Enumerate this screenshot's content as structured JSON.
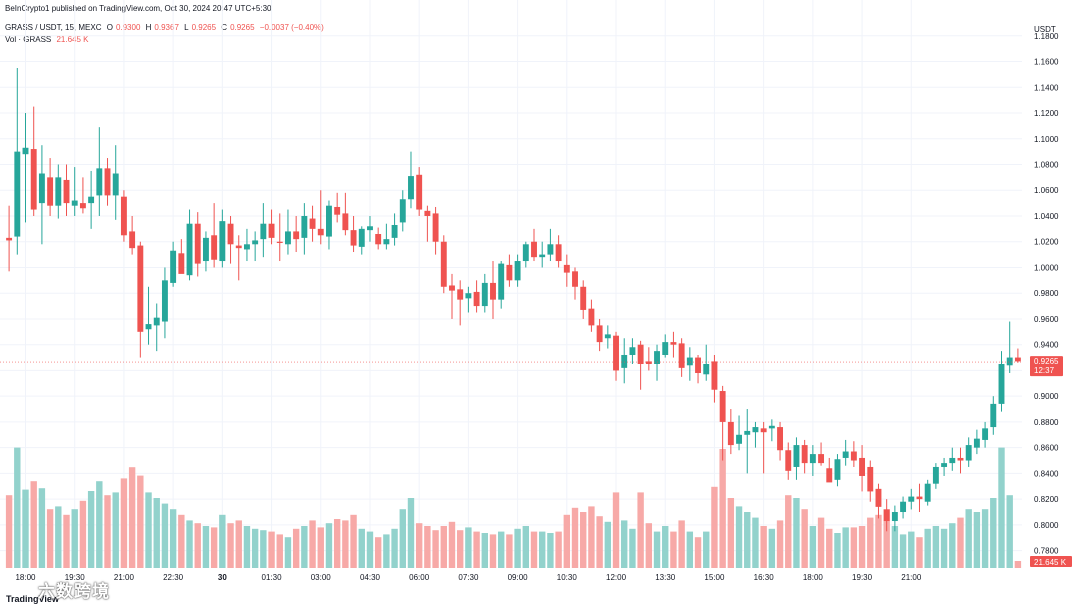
{
  "header": {
    "published": "BeInCrypto1 published on TradingView.com, Oct 30, 2024 20:47 UTC+5:30",
    "symbol": "GRASS / USDT, 15, MEXC",
    "o_label": "O",
    "o_value": "0.9300",
    "h_label": "H",
    "h_value": "0.9367",
    "l_label": "L",
    "l_value": "0.9265",
    "c_label": "C",
    "c_value": "0.9265",
    "change": "−0.0037 (−0.40%)",
    "vol_label": "Vol · GRASS",
    "vol_value": "21.645 K"
  },
  "currency_label": "USDT",
  "price_label": "0.9265",
  "countdown_label": "12:37",
  "volume_label": "21.645 K",
  "logo_text": "TradingView",
  "watermark_text": "六数跨境",
  "colors": {
    "up": "#26a69a",
    "down": "#ef5350",
    "vol_up": "#92d2cc",
    "vol_down": "#f7a9a7",
    "grid": "#f0f3fa"
  },
  "chart_data": {
    "type": "candlestick",
    "y_ticks": [
      "1.1800",
      "1.1600",
      "1.1400",
      "1.1200",
      "1.1000",
      "1.0800",
      "1.0600",
      "1.0400",
      "1.0200",
      "1.0000",
      "0.9800",
      "0.9600",
      "0.9400",
      "0.9200",
      "0.9000",
      "0.8800",
      "0.8600",
      "0.8400",
      "0.8200",
      "0.8000",
      "0.7800"
    ],
    "x_ticks": [
      "18:00",
      "19:30",
      "21:00",
      "22:30",
      "30",
      "01:30",
      "03:00",
      "04:30",
      "06:00",
      "07:30",
      "09:00",
      "10:30",
      "12:00",
      "13:30",
      "15:00",
      "16:30",
      "18:00",
      "19:30",
      "21:00"
    ],
    "x_tick_positions": [
      2,
      8,
      14,
      20,
      26,
      32,
      38,
      44,
      50,
      56,
      62,
      68,
      74,
      80,
      86,
      92,
      98,
      104,
      110
    ],
    "ylim": [
      0.7665,
      1.1845
    ],
    "bars": [
      {
        "o": 1.023,
        "h": 1.048,
        "l": 0.997,
        "c": 1.021,
        "v": 0.52
      },
      {
        "o": 1.024,
        "h": 1.155,
        "l": 1.01,
        "c": 1.09,
        "v": 0.86
      },
      {
        "o": 1.088,
        "h": 1.12,
        "l": 1.035,
        "c": 1.093,
        "v": 0.56
      },
      {
        "o": 1.092,
        "h": 1.125,
        "l": 1.04,
        "c": 1.045,
        "v": 0.62
      },
      {
        "o": 1.05,
        "h": 1.095,
        "l": 1.018,
        "c": 1.073,
        "v": 0.57
      },
      {
        "o": 1.07,
        "h": 1.085,
        "l": 1.04,
        "c": 1.048,
        "v": 0.42
      },
      {
        "o": 1.048,
        "h": 1.08,
        "l": 1.038,
        "c": 1.07,
        "v": 0.44
      },
      {
        "o": 1.068,
        "h": 1.08,
        "l": 1.04,
        "c": 1.05,
        "v": 0.38
      },
      {
        "o": 1.048,
        "h": 1.078,
        "l": 1.04,
        "c": 1.052,
        "v": 0.42
      },
      {
        "o": 1.05,
        "h": 1.07,
        "l": 1.042,
        "c": 1.046,
        "v": 0.48
      },
      {
        "o": 1.05,
        "h": 1.075,
        "l": 1.03,
        "c": 1.055,
        "v": 0.55
      },
      {
        "o": 1.056,
        "h": 1.109,
        "l": 1.04,
        "c": 1.077,
        "v": 0.62
      },
      {
        "o": 1.077,
        "h": 1.085,
        "l": 1.048,
        "c": 1.056,
        "v": 0.52
      },
      {
        "o": 1.056,
        "h": 1.095,
        "l": 1.037,
        "c": 1.073,
        "v": 0.54
      },
      {
        "o": 1.055,
        "h": 1.06,
        "l": 1.02,
        "c": 1.025,
        "v": 0.64
      },
      {
        "o": 1.028,
        "h": 1.04,
        "l": 1.01,
        "c": 1.015,
        "v": 0.72
      },
      {
        "o": 1.017,
        "h": 1.02,
        "l": 0.93,
        "c": 0.95,
        "v": 0.66
      },
      {
        "o": 0.952,
        "h": 0.985,
        "l": 0.94,
        "c": 0.956,
        "v": 0.54
      },
      {
        "o": 0.955,
        "h": 0.972,
        "l": 0.935,
        "c": 0.961,
        "v": 0.5
      },
      {
        "o": 0.958,
        "h": 1.0,
        "l": 0.945,
        "c": 0.99,
        "v": 0.46
      },
      {
        "o": 0.988,
        "h": 1.02,
        "l": 0.985,
        "c": 1.013,
        "v": 0.42
      },
      {
        "o": 1.011,
        "h": 1.022,
        "l": 0.997,
        "c": 0.995,
        "v": 0.38
      },
      {
        "o": 0.994,
        "h": 1.045,
        "l": 0.99,
        "c": 1.034,
        "v": 0.34
      },
      {
        "o": 1.034,
        "h": 1.043,
        "l": 0.993,
        "c": 1.003,
        "v": 0.32
      },
      {
        "o": 1.005,
        "h": 1.028,
        "l": 0.997,
        "c": 1.023,
        "v": 0.3
      },
      {
        "o": 1.025,
        "h": 1.05,
        "l": 1.0,
        "c": 1.006,
        "v": 0.29
      },
      {
        "o": 1.005,
        "h": 1.045,
        "l": 1.0,
        "c": 1.036,
        "v": 0.38
      },
      {
        "o": 1.034,
        "h": 1.04,
        "l": 1.003,
        "c": 1.018,
        "v": 0.32
      },
      {
        "o": 1.017,
        "h": 1.025,
        "l": 0.99,
        "c": 1.015,
        "v": 0.34
      },
      {
        "o": 1.014,
        "h": 1.03,
        "l": 1.005,
        "c": 1.018,
        "v": 0.3
      },
      {
        "o": 1.018,
        "h": 1.028,
        "l": 1.005,
        "c": 1.021,
        "v": 0.28
      },
      {
        "o": 1.022,
        "h": 1.05,
        "l": 1.008,
        "c": 1.034,
        "v": 0.27
      },
      {
        "o": 1.034,
        "h": 1.045,
        "l": 1.018,
        "c": 1.023,
        "v": 0.26
      },
      {
        "o": 1.02,
        "h": 1.042,
        "l": 1.005,
        "c": 1.019,
        "v": 0.24
      },
      {
        "o": 1.018,
        "h": 1.045,
        "l": 1.01,
        "c": 1.028,
        "v": 0.22
      },
      {
        "o": 1.028,
        "h": 1.04,
        "l": 1.012,
        "c": 1.022,
        "v": 0.28
      },
      {
        "o": 1.023,
        "h": 1.05,
        "l": 1.01,
        "c": 1.04,
        "v": 0.3
      },
      {
        "o": 1.038,
        "h": 1.048,
        "l": 1.02,
        "c": 1.03,
        "v": 0.34
      },
      {
        "o": 1.03,
        "h": 1.06,
        "l": 1.018,
        "c": 1.025,
        "v": 0.29
      },
      {
        "o": 1.024,
        "h": 1.052,
        "l": 1.014,
        "c": 1.048,
        "v": 0.32
      },
      {
        "o": 1.047,
        "h": 1.058,
        "l": 1.035,
        "c": 1.041,
        "v": 0.35
      },
      {
        "o": 1.042,
        "h": 1.058,
        "l": 1.025,
        "c": 1.029,
        "v": 0.34
      },
      {
        "o": 1.029,
        "h": 1.04,
        "l": 1.012,
        "c": 1.017,
        "v": 0.38
      },
      {
        "o": 1.016,
        "h": 1.032,
        "l": 1.01,
        "c": 1.03,
        "v": 0.28
      },
      {
        "o": 1.029,
        "h": 1.04,
        "l": 1.02,
        "c": 1.032,
        "v": 0.26
      },
      {
        "o": 1.026,
        "h": 1.031,
        "l": 1.014,
        "c": 1.018,
        "v": 0.22
      },
      {
        "o": 1.018,
        "h": 1.034,
        "l": 1.014,
        "c": 1.022,
        "v": 0.24
      },
      {
        "o": 1.023,
        "h": 1.042,
        "l": 1.017,
        "c": 1.033,
        "v": 0.28
      },
      {
        "o": 1.035,
        "h": 1.06,
        "l": 1.028,
        "c": 1.053,
        "v": 0.42
      },
      {
        "o": 1.053,
        "h": 1.09,
        "l": 1.046,
        "c": 1.071,
        "v": 0.5
      },
      {
        "o": 1.072,
        "h": 1.078,
        "l": 1.04,
        "c": 1.045,
        "v": 0.32
      },
      {
        "o": 1.044,
        "h": 1.048,
        "l": 1.02,
        "c": 1.04,
        "v": 0.3
      },
      {
        "o": 1.042,
        "h": 1.047,
        "l": 1.01,
        "c": 1.02,
        "v": 0.27
      },
      {
        "o": 1.02,
        "h": 1.025,
        "l": 0.98,
        "c": 0.985,
        "v": 0.3
      },
      {
        "o": 0.986,
        "h": 0.995,
        "l": 0.96,
        "c": 0.982,
        "v": 0.33
      },
      {
        "o": 0.983,
        "h": 0.99,
        "l": 0.955,
        "c": 0.975,
        "v": 0.27
      },
      {
        "o": 0.976,
        "h": 0.985,
        "l": 0.965,
        "c": 0.98,
        "v": 0.29
      },
      {
        "o": 0.981,
        "h": 0.99,
        "l": 0.965,
        "c": 0.97,
        "v": 0.26
      },
      {
        "o": 0.97,
        "h": 0.995,
        "l": 0.965,
        "c": 0.988,
        "v": 0.25
      },
      {
        "o": 0.988,
        "h": 1.005,
        "l": 0.96,
        "c": 0.975,
        "v": 0.24
      },
      {
        "o": 0.975,
        "h": 1.005,
        "l": 0.968,
        "c": 1.003,
        "v": 0.26
      },
      {
        "o": 1.002,
        "h": 1.01,
        "l": 0.985,
        "c": 0.99,
        "v": 0.24
      },
      {
        "o": 0.99,
        "h": 1.01,
        "l": 0.985,
        "c": 1.005,
        "v": 0.28
      },
      {
        "o": 1.005,
        "h": 1.02,
        "l": 1.0,
        "c": 1.018,
        "v": 0.3
      },
      {
        "o": 1.02,
        "h": 1.03,
        "l": 1.005,
        "c": 1.008,
        "v": 0.26
      },
      {
        "o": 1.008,
        "h": 1.02,
        "l": 1.0,
        "c": 1.01,
        "v": 0.26
      },
      {
        "o": 1.01,
        "h": 1.03,
        "l": 1.005,
        "c": 1.018,
        "v": 0.25
      },
      {
        "o": 1.018,
        "h": 1.025,
        "l": 1.0,
        "c": 1.005,
        "v": 0.26
      },
      {
        "o": 1.002,
        "h": 1.01,
        "l": 0.985,
        "c": 0.996,
        "v": 0.38
      },
      {
        "o": 0.997,
        "h": 1.0,
        "l": 0.975,
        "c": 0.985,
        "v": 0.43
      },
      {
        "o": 0.985,
        "h": 0.99,
        "l": 0.96,
        "c": 0.967,
        "v": 0.4
      },
      {
        "o": 0.968,
        "h": 0.975,
        "l": 0.95,
        "c": 0.955,
        "v": 0.44
      },
      {
        "o": 0.955,
        "h": 0.96,
        "l": 0.935,
        "c": 0.942,
        "v": 0.37
      },
      {
        "o": 0.945,
        "h": 0.955,
        "l": 0.937,
        "c": 0.948,
        "v": 0.33
      },
      {
        "o": 0.947,
        "h": 0.95,
        "l": 0.912,
        "c": 0.92,
        "v": 0.54
      },
      {
        "o": 0.922,
        "h": 0.945,
        "l": 0.91,
        "c": 0.932,
        "v": 0.34
      },
      {
        "o": 0.932,
        "h": 0.945,
        "l": 0.925,
        "c": 0.938,
        "v": 0.28
      },
      {
        "o": 0.94,
        "h": 0.943,
        "l": 0.905,
        "c": 0.925,
        "v": 0.54
      },
      {
        "o": 0.927,
        "h": 0.938,
        "l": 0.92,
        "c": 0.925,
        "v": 0.32
      },
      {
        "o": 0.925,
        "h": 0.94,
        "l": 0.912,
        "c": 0.935,
        "v": 0.26
      },
      {
        "o": 0.932,
        "h": 0.948,
        "l": 0.93,
        "c": 0.942,
        "v": 0.3
      },
      {
        "o": 0.942,
        "h": 0.95,
        "l": 0.93,
        "c": 0.94,
        "v": 0.26
      },
      {
        "o": 0.941,
        "h": 0.945,
        "l": 0.915,
        "c": 0.922,
        "v": 0.34
      },
      {
        "o": 0.924,
        "h": 0.938,
        "l": 0.912,
        "c": 0.93,
        "v": 0.26
      },
      {
        "o": 0.93,
        "h": 0.932,
        "l": 0.91,
        "c": 0.918,
        "v": 0.22
      },
      {
        "o": 0.917,
        "h": 0.94,
        "l": 0.912,
        "c": 0.925,
        "v": 0.26
      },
      {
        "o": 0.927,
        "h": 0.932,
        "l": 0.895,
        "c": 0.905,
        "v": 0.58
      },
      {
        "o": 0.904,
        "h": 0.908,
        "l": 0.85,
        "c": 0.88,
        "v": 0.85
      },
      {
        "o": 0.88,
        "h": 0.89,
        "l": 0.855,
        "c": 0.862,
        "v": 0.5
      },
      {
        "o": 0.863,
        "h": 0.885,
        "l": 0.858,
        "c": 0.87,
        "v": 0.44
      },
      {
        "o": 0.87,
        "h": 0.89,
        "l": 0.84,
        "c": 0.873,
        "v": 0.4
      },
      {
        "o": 0.872,
        "h": 0.88,
        "l": 0.86,
        "c": 0.876,
        "v": 0.36
      },
      {
        "o": 0.875,
        "h": 0.88,
        "l": 0.84,
        "c": 0.872,
        "v": 0.3
      },
      {
        "o": 0.875,
        "h": 0.882,
        "l": 0.865,
        "c": 0.877,
        "v": 0.28
      },
      {
        "o": 0.876,
        "h": 0.88,
        "l": 0.85,
        "c": 0.858,
        "v": 0.34
      },
      {
        "o": 0.858,
        "h": 0.864,
        "l": 0.835,
        "c": 0.842,
        "v": 0.52
      },
      {
        "o": 0.845,
        "h": 0.868,
        "l": 0.835,
        "c": 0.862,
        "v": 0.5
      },
      {
        "o": 0.862,
        "h": 0.866,
        "l": 0.84,
        "c": 0.848,
        "v": 0.42
      },
      {
        "o": 0.848,
        "h": 0.862,
        "l": 0.838,
        "c": 0.855,
        "v": 0.3
      },
      {
        "o": 0.855,
        "h": 0.864,
        "l": 0.846,
        "c": 0.848,
        "v": 0.36
      },
      {
        "o": 0.844,
        "h": 0.852,
        "l": 0.835,
        "c": 0.833,
        "v": 0.28
      },
      {
        "o": 0.835,
        "h": 0.855,
        "l": 0.83,
        "c": 0.851,
        "v": 0.25
      },
      {
        "o": 0.852,
        "h": 0.866,
        "l": 0.846,
        "c": 0.857,
        "v": 0.29
      },
      {
        "o": 0.857,
        "h": 0.865,
        "l": 0.845,
        "c": 0.85,
        "v": 0.29
      },
      {
        "o": 0.852,
        "h": 0.862,
        "l": 0.826,
        "c": 0.838,
        "v": 0.3
      },
      {
        "o": 0.845,
        "h": 0.85,
        "l": 0.818,
        "c": 0.826,
        "v": 0.36
      },
      {
        "o": 0.828,
        "h": 0.832,
        "l": 0.805,
        "c": 0.814,
        "v": 0.38
      },
      {
        "o": 0.812,
        "h": 0.82,
        "l": 0.795,
        "c": 0.803,
        "v": 0.42
      },
      {
        "o": 0.803,
        "h": 0.815,
        "l": 0.795,
        "c": 0.81,
        "v": 0.3
      },
      {
        "o": 0.81,
        "h": 0.822,
        "l": 0.805,
        "c": 0.818,
        "v": 0.24
      },
      {
        "o": 0.818,
        "h": 0.828,
        "l": 0.812,
        "c": 0.822,
        "v": 0.26
      },
      {
        "o": 0.822,
        "h": 0.832,
        "l": 0.81,
        "c": 0.82,
        "v": 0.22
      },
      {
        "o": 0.818,
        "h": 0.835,
        "l": 0.815,
        "c": 0.832,
        "v": 0.28
      },
      {
        "o": 0.832,
        "h": 0.848,
        "l": 0.828,
        "c": 0.845,
        "v": 0.3
      },
      {
        "o": 0.845,
        "h": 0.852,
        "l": 0.838,
        "c": 0.848,
        "v": 0.28
      },
      {
        "o": 0.848,
        "h": 0.86,
        "l": 0.842,
        "c": 0.852,
        "v": 0.32
      },
      {
        "o": 0.852,
        "h": 0.86,
        "l": 0.84,
        "c": 0.85,
        "v": 0.36
      },
      {
        "o": 0.85,
        "h": 0.868,
        "l": 0.845,
        "c": 0.862,
        "v": 0.42
      },
      {
        "o": 0.86,
        "h": 0.874,
        "l": 0.855,
        "c": 0.867,
        "v": 0.4
      },
      {
        "o": 0.866,
        "h": 0.88,
        "l": 0.86,
        "c": 0.875,
        "v": 0.42
      },
      {
        "o": 0.876,
        "h": 0.9,
        "l": 0.87,
        "c": 0.894,
        "v": 0.5
      },
      {
        "o": 0.894,
        "h": 0.935,
        "l": 0.888,
        "c": 0.925,
        "v": 0.86
      },
      {
        "o": 0.924,
        "h": 0.958,
        "l": 0.918,
        "c": 0.93,
        "v": 0.52
      },
      {
        "o": 0.93,
        "h": 0.937,
        "l": 0.926,
        "c": 0.927,
        "v": 0.05
      }
    ]
  }
}
